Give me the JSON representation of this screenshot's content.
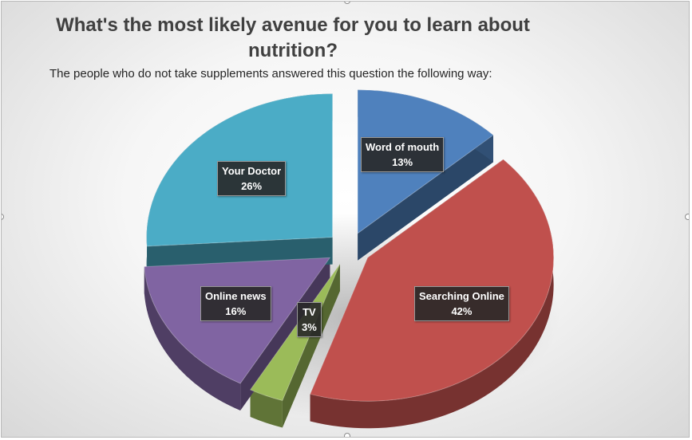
{
  "chart_data": {
    "type": "pie",
    "title": "What's the most likely avenue for you to learn about nutrition?",
    "subtitle": "The people who do not take supplements answered this question the following way:",
    "categories": [
      "Word of mouth",
      "Searching Online",
      "TV",
      "Online news",
      "Your Doctor"
    ],
    "values": [
      13,
      42,
      3,
      16,
      26
    ],
    "value_labels": [
      "13%",
      "42%",
      "3%",
      "16%",
      "26%"
    ],
    "colors": [
      "#4F81BD",
      "#C0504D",
      "#9BBB59",
      "#8064A2",
      "#4BACC6"
    ],
    "style": "3D exploded pie",
    "legend": "none"
  }
}
